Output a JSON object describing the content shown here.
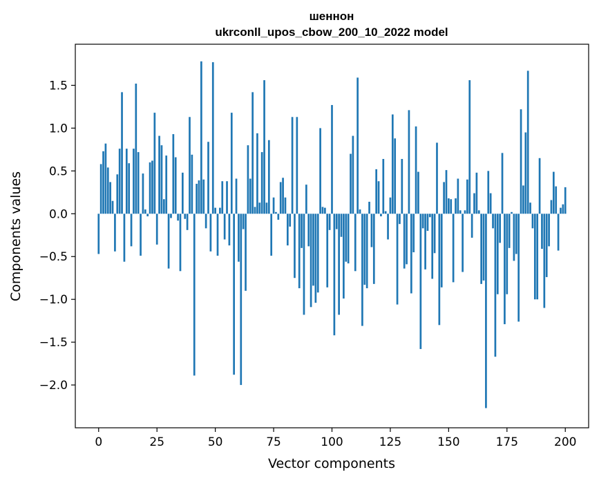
{
  "chart_data": {
    "type": "bar",
    "title_line1": "шеннон",
    "title_line2": "ukrconll_upos_cbow_200_10_2022 model",
    "xlabel": "Vector components",
    "ylabel": "Components values",
    "xlim": [
      -10,
      210
    ],
    "ylim": [
      -2.5,
      1.98
    ],
    "xticks": [
      0,
      25,
      50,
      75,
      100,
      125,
      150,
      175,
      200
    ],
    "yticks": [
      -2.0,
      -1.5,
      -1.0,
      -0.5,
      0.0,
      0.5,
      1.0,
      1.5
    ],
    "ytick_labels": [
      "−2.0",
      "−1.5",
      "−1.0",
      "−0.5",
      "0.0",
      "0.5",
      "1.0",
      "1.5"
    ],
    "grid": false,
    "bar_color": "#1f77b4",
    "values": [
      -0.47,
      0.58,
      0.73,
      0.82,
      0.54,
      0.37,
      0.15,
      -0.44,
      0.46,
      0.76,
      1.42,
      -0.56,
      0.76,
      0.59,
      -0.38,
      0.76,
      1.52,
      0.72,
      -0.49,
      0.47,
      0.05,
      -0.03,
      0.6,
      0.62,
      1.18,
      -0.36,
      0.91,
      0.8,
      0.17,
      0.68,
      -0.64,
      -0.05,
      0.93,
      0.66,
      -0.08,
      -0.67,
      0.48,
      -0.06,
      -0.19,
      1.13,
      0.69,
      -1.89,
      0.35,
      0.39,
      1.78,
      0.4,
      -0.17,
      0.84,
      -0.44,
      1.77,
      0.07,
      -0.49,
      0.07,
      0.38,
      -0.3,
      0.38,
      -0.37,
      1.18,
      -1.88,
      0.41,
      -0.56,
      -2.0,
      -0.18,
      -0.9,
      0.8,
      0.41,
      1.42,
      0.08,
      0.94,
      0.13,
      0.72,
      1.56,
      0.13,
      0.86,
      -0.49,
      0.19,
      0.02,
      -0.07,
      0.37,
      0.42,
      0.19,
      -0.37,
      -0.15,
      1.13,
      -0.75,
      1.13,
      -0.87,
      -0.4,
      -1.18,
      0.34,
      -0.38,
      -1.09,
      -0.84,
      -1.04,
      -0.92,
      1.0,
      0.08,
      0.07,
      -0.86,
      -0.19,
      1.27,
      -1.42,
      -0.18,
      -1.18,
      -0.27,
      -0.99,
      -0.56,
      -0.58,
      0.7,
      0.91,
      -0.67,
      1.59,
      0.05,
      -1.31,
      -0.83,
      -0.87,
      0.14,
      -0.39,
      -0.82,
      0.52,
      0.38,
      -0.03,
      0.64,
      0.03,
      -0.3,
      0.19,
      1.16,
      0.88,
      -1.06,
      -0.12,
      0.64,
      -0.64,
      -0.59,
      1.21,
      -0.93,
      -0.45,
      1.02,
      0.49,
      -1.58,
      -0.17,
      -0.65,
      -0.2,
      -0.04,
      -0.76,
      -0.46,
      0.83,
      -1.3,
      -0.86,
      0.37,
      0.51,
      0.18,
      0.17,
      -0.8,
      0.18,
      0.41,
      0.04,
      -0.68,
      0.04,
      0.4,
      1.56,
      -0.28,
      0.24,
      0.48,
      0.04,
      -0.82,
      -0.78,
      -2.27,
      0.5,
      0.24,
      -0.17,
      -1.67,
      -0.94,
      -0.34,
      0.71,
      -1.29,
      -0.94,
      -0.4,
      0.02,
      -0.55,
      -0.47,
      -1.26,
      1.22,
      0.33,
      0.95,
      1.67,
      0.13,
      -0.17,
      -1.0,
      -1.0,
      0.65,
      -0.41,
      -1.1,
      -0.74,
      -0.38,
      0.16,
      0.49,
      0.32,
      -0.43,
      0.07,
      0.11,
      0.31
    ]
  }
}
